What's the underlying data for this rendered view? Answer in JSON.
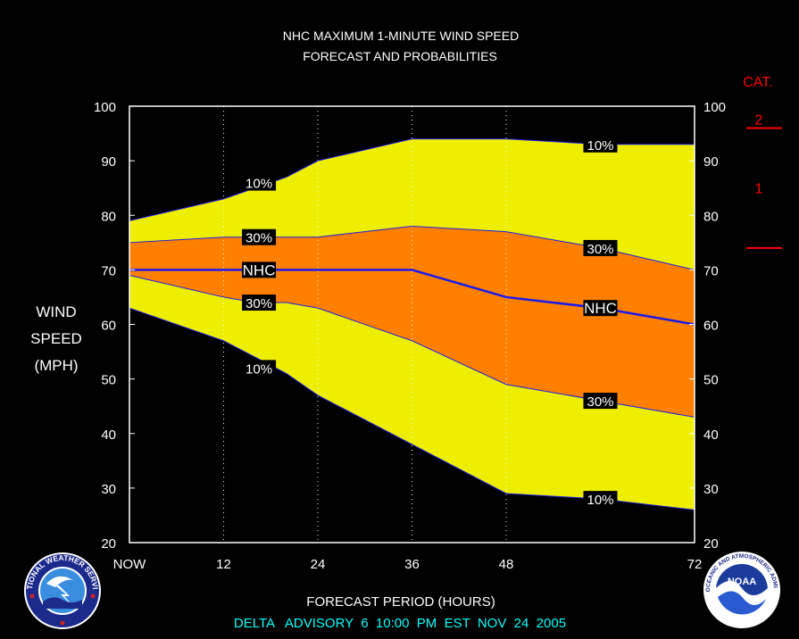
{
  "colors": {
    "background": "#000000",
    "outer_band": "#eeee00",
    "inner_band": "#ff8000",
    "nhc_line": "#1a1aee",
    "band_edge": "#1a1aee",
    "text": "#ffffff",
    "category": "#ff0000",
    "footer": "#00ffff"
  },
  "chart_data": {
    "type": "area",
    "title": "NHC MAXIMUM 1-MINUTE WIND SPEED",
    "subtitle": "FORECAST AND PROBABILITIES",
    "ylabel": [
      "WIND",
      "SPEED",
      "(MPH)"
    ],
    "xlabel": "FORECAST PERIOD (HOURS)",
    "ylim": [
      20,
      100
    ],
    "xlim": [
      0,
      72
    ],
    "yticks": [
      "20",
      "30",
      "40",
      "50",
      "60",
      "70",
      "80",
      "90",
      "100"
    ],
    "xticks": [
      {
        "x": 0,
        "label": "NOW"
      },
      {
        "x": 12,
        "label": "12"
      },
      {
        "x": 24,
        "label": "24"
      },
      {
        "x": 36,
        "label": "36"
      },
      {
        "x": 48,
        "label": "48"
      },
      {
        "x": 72,
        "label": "72"
      }
    ],
    "vertical_gridlines_at": [
      12,
      24,
      36,
      48
    ],
    "x": [
      0,
      12,
      16,
      20,
      24,
      36,
      48,
      60,
      72
    ],
    "series": [
      {
        "name": "10%",
        "values": [
          79,
          83,
          85,
          87,
          90,
          94,
          94,
          93,
          93
        ]
      },
      {
        "name": "30%",
        "values": [
          75,
          76,
          76,
          76,
          76,
          78,
          77,
          74,
          70
        ]
      },
      {
        "name": "NHC",
        "values": [
          70,
          70,
          70,
          70,
          70,
          70,
          65,
          63,
          60
        ]
      },
      {
        "name": "30%",
        "values": [
          69,
          65,
          64,
          64,
          63,
          57,
          49,
          46,
          43
        ]
      },
      {
        "name": "10%",
        "values": [
          63,
          57,
          54,
          51,
          47,
          38,
          29,
          28,
          26
        ]
      }
    ],
    "band_labels": [
      {
        "text": "10%",
        "x": 16.5,
        "y": 86
      },
      {
        "text": "30%",
        "x": 16.5,
        "y": 76
      },
      {
        "text": "NHC",
        "x": 16.5,
        "y": 70
      },
      {
        "text": "30%",
        "x": 16.5,
        "y": 64
      },
      {
        "text": "10%",
        "x": 16.5,
        "y": 52
      },
      {
        "text": "10%",
        "x": 60,
        "y": 93
      },
      {
        "text": "30%",
        "x": 60,
        "y": 74
      },
      {
        "text": "NHC",
        "x": 60,
        "y": 63
      },
      {
        "text": "30%",
        "x": 60,
        "y": 46
      },
      {
        "text": "10%",
        "x": 60,
        "y": 28
      }
    ],
    "category_scale": {
      "title": "CAT.",
      "levels": [
        {
          "label": "2",
          "boundary_mph": 96
        },
        {
          "label": "1",
          "boundary_mph": 74
        }
      ]
    }
  },
  "footer": "DELTA   ADVISORY  6  10:00  PM  EST  NOV  24  2005"
}
